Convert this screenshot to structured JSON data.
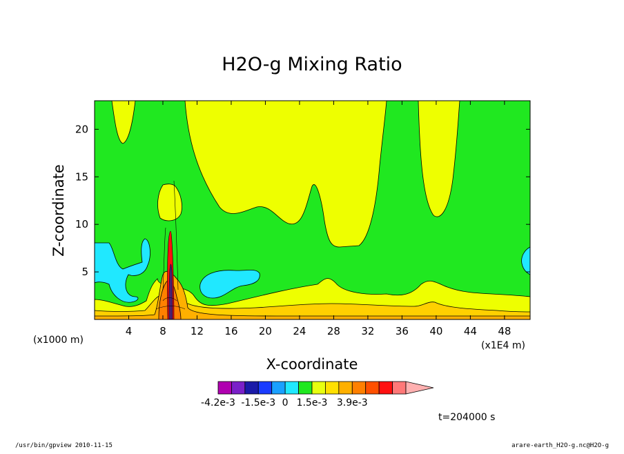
{
  "chart_data": {
    "type": "contour",
    "title": "H2O-g Mixing Ratio",
    "xlabel": "X-coordinate",
    "ylabel": "Z-coordinate",
    "x_unit_left": "(x1000 m)",
    "x_unit_right": "(x1E4 m)",
    "xlim": [
      0,
      51
    ],
    "ylim": [
      0,
      23
    ],
    "x_ticks": [
      4,
      8,
      12,
      16,
      20,
      24,
      28,
      32,
      36,
      40,
      44,
      48
    ],
    "y_ticks": [
      5,
      10,
      15,
      20
    ],
    "time_label": "t=204000 s",
    "colorbar": {
      "colors": [
        "#b000b0",
        "#7a20c8",
        "#1a1aa8",
        "#1a3cff",
        "#1aa0ff",
        "#20e8ff",
        "#20e820",
        "#e8ff10",
        "#ffe000",
        "#ffb000",
        "#ff8000",
        "#ff5000",
        "#ff1010",
        "#ff7878",
        "#ffb0b0"
      ],
      "tick_labels": [
        "-4.2e-3",
        "-1.5e-3",
        "0",
        "1.5e-3",
        "3.9e-3"
      ]
    },
    "colors": {
      "green": "#20e820",
      "yellow": "#eeff00",
      "cyan": "#20e8ff",
      "gold": "#ffd000",
      "orange": "#ffb000"
    }
  },
  "footer": {
    "left": "/usr/bin/gpview  2010-11-15",
    "right": "arare-earth_H2O-g.nc@H2O-g"
  }
}
